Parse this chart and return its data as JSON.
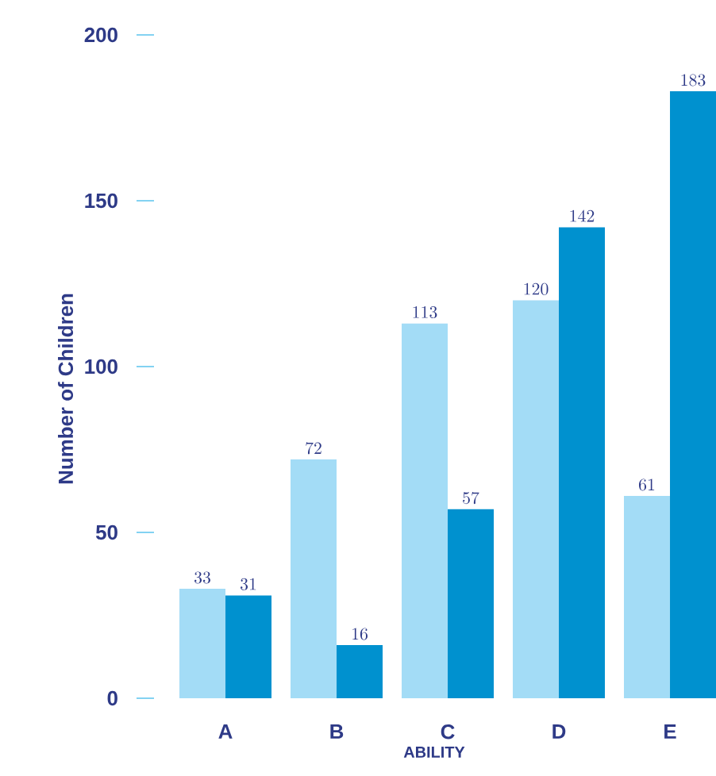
{
  "chart_data": {
    "type": "bar",
    "ylabel": "Number of Children",
    "xlabel": "ABILITY",
    "categories": [
      "A",
      "B",
      "C",
      "D",
      "E"
    ],
    "series": [
      {
        "color": "#a3dcf6",
        "values": [
          33,
          72,
          113,
          120,
          61
        ]
      },
      {
        "color": "#0091cf",
        "values": [
          31,
          16,
          57,
          142,
          183
        ]
      }
    ],
    "ylim": [
      0,
      200
    ],
    "yticks": [
      0,
      50,
      100,
      150,
      200
    ],
    "data_labels": true
  }
}
